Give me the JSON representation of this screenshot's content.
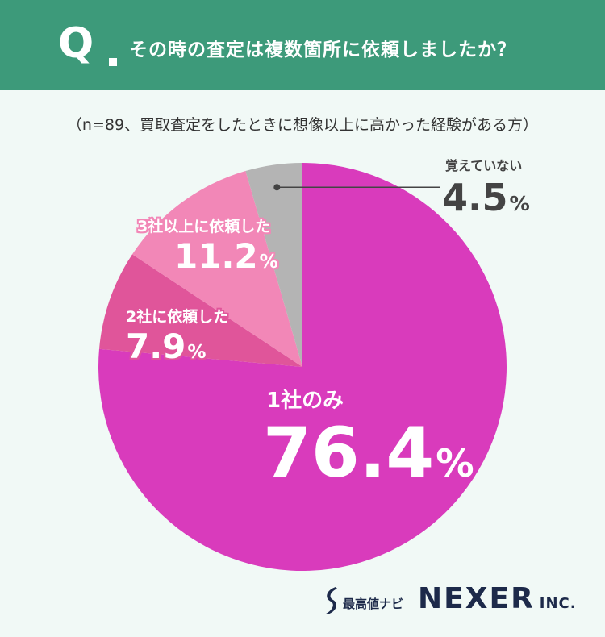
{
  "header": {
    "q_label": "Q",
    "question": "その時の査定は複数箇所に依頼しましたか？"
  },
  "subtitle": "（n=89、買取査定をしたときに想像以上に高かった経験がある方）",
  "chart_data": {
    "type": "pie",
    "slices": [
      {
        "label": "1社のみ",
        "value": 76.4,
        "value_text": "76.4",
        "color": "#d93bbc"
      },
      {
        "label": "2社に依頼した",
        "value": 7.9,
        "value_text": "7.9",
        "color": "#e0559a"
      },
      {
        "label": "3社以上に依頼した",
        "value": 11.2,
        "value_text": "11.2",
        "color": "#f287b7"
      },
      {
        "label": "覚えていない",
        "value": 4.5,
        "value_text": "4.5",
        "color": "#b4b4b4"
      }
    ],
    "unit": "%"
  },
  "footer": {
    "site_name": "最高値ナビ",
    "company": "NEXER",
    "company_suffix": "INC."
  }
}
